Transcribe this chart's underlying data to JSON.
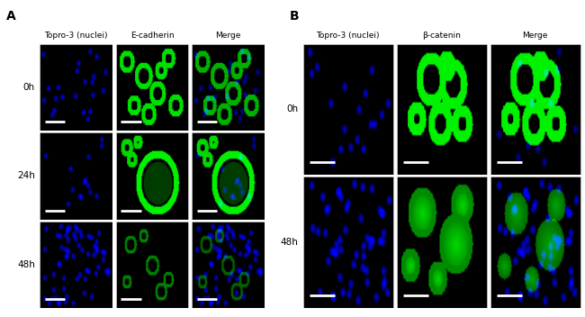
{
  "fig_width": 6.5,
  "fig_height": 3.52,
  "dpi": 100,
  "panel_A_label": "A",
  "panel_B_label": "B",
  "panel_A_col_headers": [
    "Topro-3 (nuclei)",
    "E-cadherin",
    "Merge"
  ],
  "panel_B_col_headers": [
    "Topro-3 (nuclei)",
    "β-catenin",
    "Merge"
  ],
  "panel_A_row_labels": [
    "0h",
    "24h",
    "48h"
  ],
  "panel_B_row_labels": [
    "0h",
    "48h"
  ],
  "header_fontsize": 6.5,
  "label_fontsize": 7.5,
  "panel_label_fontsize": 10
}
